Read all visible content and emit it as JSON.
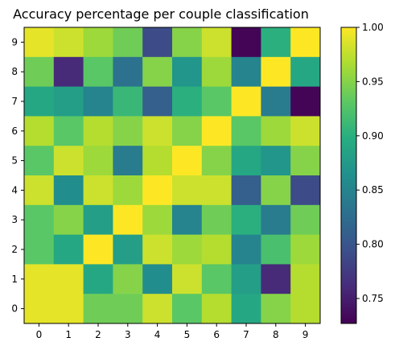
{
  "chart_data": {
    "type": "heatmap",
    "title": "Accuracy percentage per couple classification",
    "xlabel": "",
    "ylabel": "",
    "x_categories": [
      "0",
      "1",
      "2",
      "3",
      "4",
      "5",
      "6",
      "7",
      "8",
      "9"
    ],
    "y_categories": [
      "0",
      "1",
      "2",
      "3",
      "4",
      "5",
      "6",
      "7",
      "8",
      "9"
    ],
    "rows_top_to_bottom": [
      "9",
      "8",
      "7",
      "6",
      "5",
      "4",
      "3",
      "2",
      "1",
      "0"
    ],
    "values": [
      [
        0.99,
        0.98,
        0.96,
        0.94,
        0.79,
        0.95,
        0.98,
        0.73,
        0.9,
        1.0
      ],
      [
        0.94,
        0.76,
        0.93,
        0.83,
        0.95,
        0.87,
        0.96,
        0.85,
        1.0,
        0.89
      ],
      [
        0.89,
        0.88,
        0.85,
        0.91,
        0.81,
        0.9,
        0.93,
        1.0,
        0.84,
        0.73
      ],
      [
        0.97,
        0.93,
        0.97,
        0.95,
        0.98,
        0.95,
        1.0,
        0.93,
        0.96,
        0.98
      ],
      [
        0.93,
        0.98,
        0.96,
        0.84,
        0.97,
        1.0,
        0.95,
        0.89,
        0.87,
        0.95
      ],
      [
        0.98,
        0.86,
        0.98,
        0.96,
        1.0,
        0.98,
        0.98,
        0.81,
        0.95,
        0.79
      ],
      [
        0.93,
        0.95,
        0.88,
        1.0,
        0.96,
        0.85,
        0.94,
        0.9,
        0.84,
        0.94
      ],
      [
        0.93,
        0.89,
        1.0,
        0.88,
        0.98,
        0.96,
        0.97,
        0.85,
        0.92,
        0.96
      ],
      [
        0.99,
        0.99,
        0.89,
        0.95,
        0.86,
        0.98,
        0.93,
        0.88,
        0.76,
        0.97
      ],
      [
        0.99,
        0.99,
        0.94,
        0.94,
        0.98,
        0.93,
        0.97,
        0.89,
        0.95,
        0.97
      ]
    ],
    "colorscale": "viridis",
    "colorbar_range": [
      0.727,
      1.0
    ],
    "colorbar_ticks": [
      "0.75",
      "0.80",
      "0.85",
      "0.90",
      "0.95",
      "1.00"
    ],
    "colorbar_tick_values": [
      0.75,
      0.8,
      0.85,
      0.9,
      0.95,
      1.0
    ],
    "grid": false
  }
}
